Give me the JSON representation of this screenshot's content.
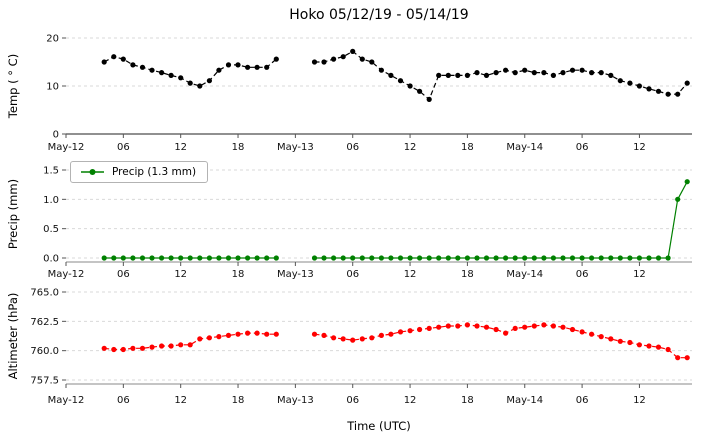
{
  "title": "Hoko 05/12/19 - 05/14/19",
  "legend": {
    "precip_label": "Precip (1.3 mm)"
  },
  "x_axis": {
    "label": "Time (UTC)",
    "range_hours": [
      0,
      65.5
    ],
    "tick_hours": [
      0,
      6,
      12,
      18,
      24,
      30,
      36,
      42,
      48,
      54,
      60
    ],
    "tick_labels": [
      "May-12",
      "06",
      "12",
      "18",
      "May-13",
      "06",
      "12",
      "18",
      "May-14",
      "06",
      "12"
    ]
  },
  "chart_data": [
    {
      "type": "line",
      "name": "temperature",
      "ylabel": "Temp ( ° C)",
      "color": "#000000",
      "line_style": "dashed",
      "ylim": [
        0,
        20
      ],
      "yticks": [
        0,
        10,
        20
      ],
      "ytick_labels": [
        "0",
        "10",
        "20"
      ],
      "x": [
        4,
        5,
        6,
        7,
        8,
        9,
        10,
        11,
        12,
        13,
        14,
        15,
        16,
        17,
        18,
        19,
        20,
        21,
        22,
        26,
        27,
        28,
        29,
        30,
        31,
        32,
        33,
        34,
        35,
        36,
        37,
        38,
        39,
        40,
        41,
        42,
        43,
        44,
        45,
        46,
        47,
        48,
        49,
        50,
        51,
        52,
        53,
        54,
        55,
        56,
        57,
        58,
        59,
        60,
        61,
        62,
        63,
        64,
        65
      ],
      "values": [
        15.0,
        16.1,
        15.6,
        14.4,
        13.9,
        13.3,
        12.8,
        12.2,
        11.7,
        10.6,
        10.0,
        11.1,
        13.3,
        14.4,
        14.4,
        13.9,
        13.9,
        13.9,
        15.6,
        15.0,
        15.0,
        15.6,
        16.1,
        17.2,
        15.6,
        15.0,
        13.3,
        12.2,
        11.1,
        10.0,
        8.9,
        7.2,
        12.2,
        12.2,
        12.2,
        12.2,
        12.8,
        12.2,
        12.8,
        13.3,
        12.8,
        13.3,
        12.8,
        12.8,
        12.2,
        12.8,
        13.3,
        13.3,
        12.8,
        12.8,
        12.2,
        11.1,
        10.6,
        10.0,
        9.4,
        8.9,
        8.3,
        8.3,
        10.6
      ]
    },
    {
      "type": "line",
      "name": "precip",
      "ylabel": "Precip (mm)",
      "color": "#008000",
      "line_style": "solid",
      "ylim": [
        0,
        1.5
      ],
      "yticks": [
        0.0,
        0.5,
        1.0,
        1.5
      ],
      "ytick_labels": [
        "0.0",
        "0.5",
        "1.0",
        "1.5"
      ],
      "x": [
        4,
        5,
        6,
        7,
        8,
        9,
        10,
        11,
        12,
        13,
        14,
        15,
        16,
        17,
        18,
        19,
        20,
        21,
        22,
        26,
        27,
        28,
        29,
        30,
        31,
        32,
        33,
        34,
        35,
        36,
        37,
        38,
        39,
        40,
        41,
        42,
        43,
        44,
        45,
        46,
        47,
        48,
        49,
        50,
        51,
        52,
        53,
        54,
        55,
        56,
        57,
        58,
        59,
        60,
        61,
        62,
        63,
        64,
        65
      ],
      "values": [
        0.0,
        0.0,
        0.0,
        0.0,
        0.0,
        0.0,
        0.0,
        0.0,
        0.0,
        0.0,
        0.0,
        0.0,
        0.0,
        0.0,
        0.0,
        0.0,
        0.0,
        0.0,
        0.0,
        0.0,
        0.0,
        0.0,
        0.0,
        0.0,
        0.0,
        0.0,
        0.0,
        0.0,
        0.0,
        0.0,
        0.0,
        0.0,
        0.0,
        0.0,
        0.0,
        0.0,
        0.0,
        0.0,
        0.0,
        0.0,
        0.0,
        0.0,
        0.0,
        0.0,
        0.0,
        0.0,
        0.0,
        0.0,
        0.0,
        0.0,
        0.0,
        0.0,
        0.0,
        0.0,
        0.0,
        0.0,
        0.0,
        1.0,
        1.3
      ]
    },
    {
      "type": "line",
      "name": "altimeter",
      "ylabel": "Altimeter (hPa)",
      "color": "#ff0000",
      "line_style": "dashed",
      "ylim": [
        757.5,
        765.0
      ],
      "yticks": [
        757.5,
        760.0,
        762.5,
        765.0
      ],
      "ytick_labels": [
        "757.5",
        "760.0",
        "762.5",
        "765.0"
      ],
      "x": [
        4,
        5,
        6,
        7,
        8,
        9,
        10,
        11,
        12,
        13,
        14,
        15,
        16,
        17,
        18,
        19,
        20,
        21,
        22,
        26,
        27,
        28,
        29,
        30,
        31,
        32,
        33,
        34,
        35,
        36,
        37,
        38,
        39,
        40,
        41,
        42,
        43,
        44,
        45,
        46,
        47,
        48,
        49,
        50,
        51,
        52,
        53,
        54,
        55,
        56,
        57,
        58,
        59,
        60,
        61,
        62,
        63,
        64,
        65
      ],
      "values": [
        760.2,
        760.1,
        760.1,
        760.2,
        760.2,
        760.3,
        760.4,
        760.4,
        760.5,
        760.5,
        761.0,
        761.1,
        761.2,
        761.3,
        761.4,
        761.5,
        761.5,
        761.4,
        761.4,
        761.4,
        761.3,
        761.1,
        761.0,
        760.9,
        761.0,
        761.1,
        761.3,
        761.4,
        761.6,
        761.7,
        761.8,
        761.9,
        762.0,
        762.1,
        762.1,
        762.2,
        762.1,
        762.0,
        761.8,
        761.5,
        761.9,
        762.0,
        762.1,
        762.2,
        762.1,
        762.0,
        761.8,
        761.6,
        761.4,
        761.2,
        761.0,
        760.8,
        760.7,
        760.5,
        760.4,
        760.3,
        760.1,
        759.4,
        759.4
      ]
    }
  ]
}
